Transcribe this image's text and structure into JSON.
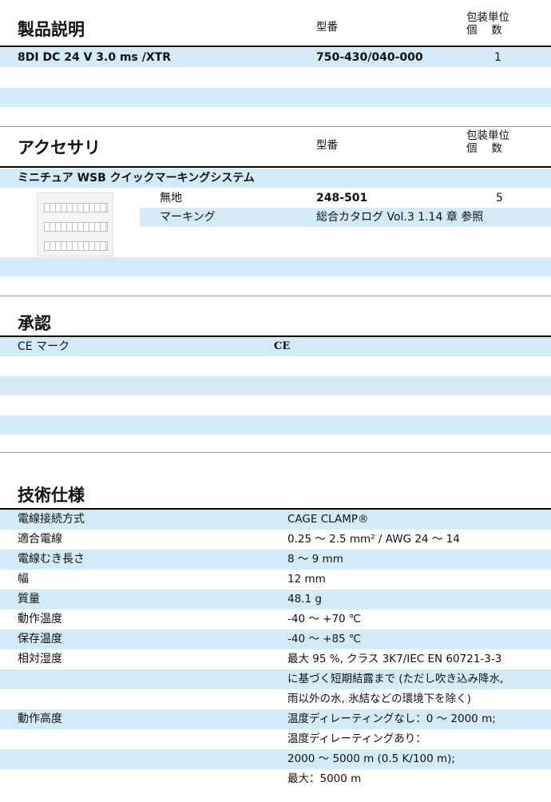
{
  "product": {
    "title": "製品説明",
    "model_header": "型番",
    "pack_header": [
      "包装単位",
      "個　 数"
    ],
    "rows": [
      [
        "8DI DC 24 V 3.0 ms /XTR",
        "750-430/040-000",
        "1"
      ]
    ]
  },
  "accessory": {
    "title": "アクセサリ",
    "model_header": "型番",
    "pack_header": [
      "包装単位",
      "個　 数"
    ],
    "group": "ミニチュア WSB クイックマーキングシステム",
    "rows": [
      [
        "無地",
        "248-501",
        "5"
      ],
      [
        "マーキング",
        "総合カタログ Vol.3 1.14 章 参照"
      ]
    ]
  },
  "approval": {
    "title": "承認",
    "rows": [
      [
        "CE マーク",
        "CE"
      ]
    ]
  },
  "specs": {
    "title": "技術仕様",
    "rows": [
      {
        "label": "電線接続方式",
        "lines": [
          "CAGE CLAMP®"
        ]
      },
      {
        "label": "適合電線",
        "lines": [
          "0.25 ～ 2.5 mm² / AWG 24 ～ 14"
        ]
      },
      {
        "label": "電線むき長さ",
        "lines": [
          "8 ～ 9 mm"
        ]
      },
      {
        "label": "幅",
        "lines": [
          "12 mm"
        ]
      },
      {
        "label": "質量",
        "lines": [
          "48.1 g"
        ]
      },
      {
        "label": "動作温度",
        "lines": [
          "-40 ～ +70 ℃"
        ]
      },
      {
        "label": "保存温度",
        "lines": [
          "-40 ～ +85 ℃"
        ]
      },
      {
        "label": "相対湿度",
        "lines": [
          "最大 95 %, クラス 3K7/IEC EN 60721-3-3",
          "に基づく短期結露まで (ただし吹き込み降水,",
          "雨以外の水, 氷結などの環境下を除く)"
        ]
      },
      {
        "label": "動作高度",
        "lines": [
          "温度ディレーティングなし：0 ～ 2000 m;",
          "温度ディレーティングあり：",
          "2000 ～ 5000 m (0.5 K/100 m);",
          "最大：5000 m"
        ]
      }
    ]
  }
}
